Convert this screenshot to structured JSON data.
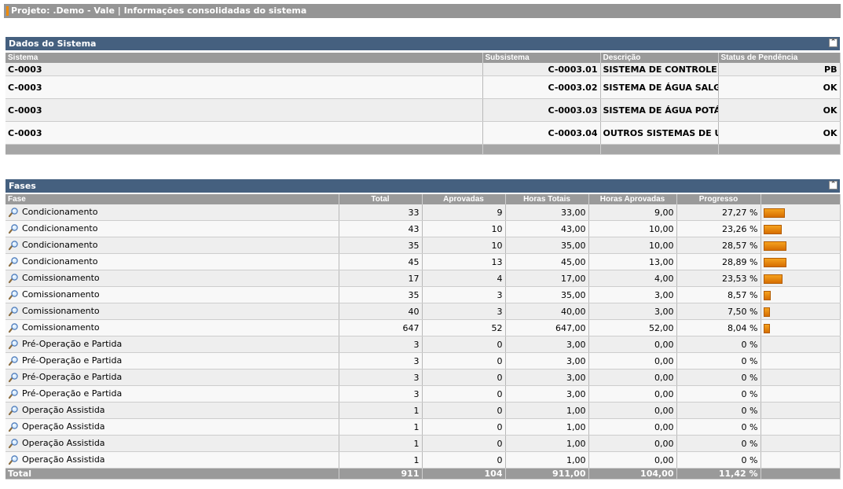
{
  "header": {
    "title": "Projeto: .Demo - Vale | Informações consolidadas do sistema"
  },
  "sistema_panel": {
    "title": "Dados do Sistema",
    "columns": [
      "Sistema",
      "Subsistema",
      "Descrição",
      "Status de Pendência"
    ],
    "rows": [
      {
        "sistema": "C-0003",
        "subsistema": "C-0003.01",
        "descricao": "SISTEMA DE CONTROLE",
        "status": "PB"
      },
      {
        "sistema": "C-0003",
        "subsistema": "C-0003.02",
        "descricao": "SISTEMA DE ÁGUA SALGADA",
        "status": "OK"
      },
      {
        "sistema": "C-0003",
        "subsistema": "C-0003.03",
        "descricao": "SISTEMA DE ÁGUA POTÁVEL",
        "status": "OK"
      },
      {
        "sistema": "C-0003",
        "subsistema": "C-0003.04",
        "descricao": "OUTROS SISTEMAS DE UTILIDADES",
        "status": "OK"
      }
    ]
  },
  "fases_panel": {
    "title": "Fases",
    "columns": [
      "Fase",
      "Total",
      "Aprovadas",
      "Horas Totais",
      "Horas Aprovadas",
      "Progresso",
      ""
    ],
    "rows": [
      {
        "fase": "Condicionamento",
        "total": "33",
        "aprovadas": "9",
        "horas_totais": "33,00",
        "horas_aprovadas": "9,00",
        "progresso": "27,27 %",
        "pct": 27.27
      },
      {
        "fase": "Condicionamento",
        "total": "43",
        "aprovadas": "10",
        "horas_totais": "43,00",
        "horas_aprovadas": "10,00",
        "progresso": "23,26 %",
        "pct": 23.26
      },
      {
        "fase": "Condicionamento",
        "total": "35",
        "aprovadas": "10",
        "horas_totais": "35,00",
        "horas_aprovadas": "10,00",
        "progresso": "28,57 %",
        "pct": 28.57
      },
      {
        "fase": "Condicionamento",
        "total": "45",
        "aprovadas": "13",
        "horas_totais": "45,00",
        "horas_aprovadas": "13,00",
        "progresso": "28,89 %",
        "pct": 28.89
      },
      {
        "fase": "Comissionamento",
        "total": "17",
        "aprovadas": "4",
        "horas_totais": "17,00",
        "horas_aprovadas": "4,00",
        "progresso": "23,53 %",
        "pct": 23.53
      },
      {
        "fase": "Comissionamento",
        "total": "35",
        "aprovadas": "3",
        "horas_totais": "35,00",
        "horas_aprovadas": "3,00",
        "progresso": "8,57 %",
        "pct": 8.57
      },
      {
        "fase": "Comissionamento",
        "total": "40",
        "aprovadas": "3",
        "horas_totais": "40,00",
        "horas_aprovadas": "3,00",
        "progresso": "7,50 %",
        "pct": 7.5
      },
      {
        "fase": "Comissionamento",
        "total": "647",
        "aprovadas": "52",
        "horas_totais": "647,00",
        "horas_aprovadas": "52,00",
        "progresso": "8,04 %",
        "pct": 8.04
      },
      {
        "fase": "Pré-Operação e Partida",
        "total": "3",
        "aprovadas": "0",
        "horas_totais": "3,00",
        "horas_aprovadas": "0,00",
        "progresso": "0 %",
        "pct": 0
      },
      {
        "fase": "Pré-Operação e Partida",
        "total": "3",
        "aprovadas": "0",
        "horas_totais": "3,00",
        "horas_aprovadas": "0,00",
        "progresso": "0 %",
        "pct": 0
      },
      {
        "fase": "Pré-Operação e Partida",
        "total": "3",
        "aprovadas": "0",
        "horas_totais": "3,00",
        "horas_aprovadas": "0,00",
        "progresso": "0 %",
        "pct": 0
      },
      {
        "fase": "Pré-Operação e Partida",
        "total": "3",
        "aprovadas": "0",
        "horas_totais": "3,00",
        "horas_aprovadas": "0,00",
        "progresso": "0 %",
        "pct": 0
      },
      {
        "fase": "Operação Assistida",
        "total": "1",
        "aprovadas": "0",
        "horas_totais": "1,00",
        "horas_aprovadas": "0,00",
        "progresso": "0 %",
        "pct": 0
      },
      {
        "fase": "Operação Assistida",
        "total": "1",
        "aprovadas": "0",
        "horas_totais": "1,00",
        "horas_aprovadas": "0,00",
        "progresso": "0 %",
        "pct": 0
      },
      {
        "fase": "Operação Assistida",
        "total": "1",
        "aprovadas": "0",
        "horas_totais": "1,00",
        "horas_aprovadas": "0,00",
        "progresso": "0 %",
        "pct": 0
      },
      {
        "fase": "Operação Assistida",
        "total": "1",
        "aprovadas": "0",
        "horas_totais": "1,00",
        "horas_aprovadas": "0,00",
        "progresso": "0 %",
        "pct": 0
      }
    ],
    "totals": {
      "label": "Total",
      "total": "911",
      "aprovadas": "104",
      "horas_totais": "911,00",
      "horas_aprovadas": "104,00",
      "progresso": "11,42 %"
    }
  },
  "icons": {
    "row_detail": "magnifier-icon",
    "collapse": "collapse-up-icon"
  },
  "colors": {
    "panel_header": "#45607f",
    "progress_bar": "#e8870f",
    "accent": "#f08a00"
  }
}
